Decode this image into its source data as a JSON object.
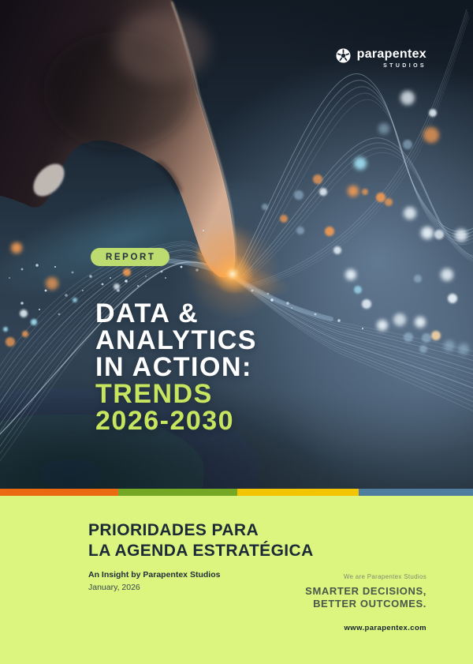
{
  "brand": {
    "logo_text": "parapentex",
    "logo_sub": "STUDIOS"
  },
  "cover": {
    "badge": "REPORT",
    "title_lines_white": [
      "DATA &",
      "ANALYTICS",
      "IN ACTION:"
    ],
    "title_lines_green": [
      "TRENDS",
      "2026-2030"
    ],
    "accent_green": "#c7e55f"
  },
  "footer_stripe": {
    "colors": [
      "#e96a10",
      "#74a824",
      "#f3c402",
      "#4e7da0"
    ]
  },
  "bottom": {
    "background": "#dcf57f",
    "heading_lines": [
      "PRIORIDADES PARA",
      "LA AGENDA ESTRATÉGICA"
    ],
    "byline": "An Insight by Parapentex Studios",
    "date": "January, 2026",
    "tagline_small": "We are Parapentex Studios",
    "tagline_lines": [
      "SMARTER DECISIONS,",
      "BETTER OUTCOMES."
    ],
    "website": "www.parapentex.com"
  }
}
